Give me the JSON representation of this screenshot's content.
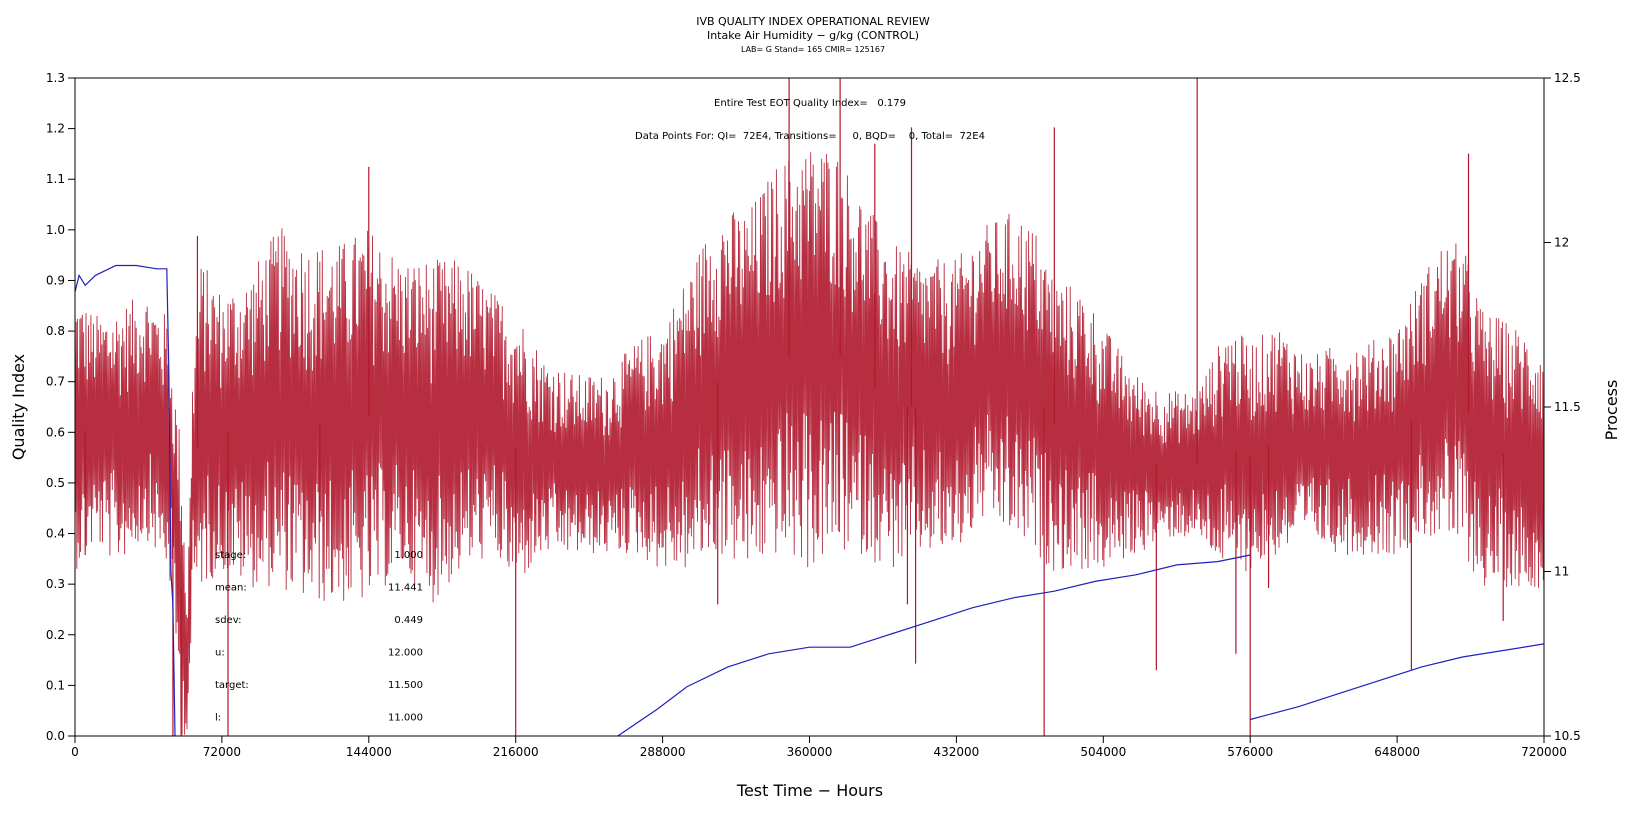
{
  "chart_data": {
    "type": "line",
    "title": "IVB QUALITY INDEX OPERATIONAL REVIEW",
    "subtitle": "Intake Air Humidity − g/kg (CONTROL)",
    "subtitle2": "LAB= G Stand= 165 CMIR= 125167",
    "xlabel": "Test Time − Hours",
    "ylabel_left": "Quality Index",
    "ylabel_right": "Process",
    "xlim": [
      0,
      720000
    ],
    "ylim_left": [
      0,
      1.3
    ],
    "ylim_right": [
      10.5,
      12.5
    ],
    "x_ticks": [
      "0",
      "72000",
      "144000",
      "216000",
      "288000",
      "360000",
      "432000",
      "504000",
      "576000",
      "648000",
      "720000"
    ],
    "y_left_ticks": [
      "0.0",
      "0.1",
      "0.2",
      "0.3",
      "0.4",
      "0.5",
      "0.6",
      "0.7",
      "0.8",
      "0.9",
      "1.0",
      "1.1",
      "1.2",
      "1.3"
    ],
    "y_right_ticks": [
      "10.5",
      "11",
      "11.5",
      "12",
      "12.5"
    ],
    "annotations": {
      "eot": "Entire Test EOT Quality Index=   0.179",
      "points": "Data Points For: QI=  72E4, Transitions=     0, BQD=    0, Total=  72E4"
    },
    "stats": [
      {
        "label": "stage:",
        "value": "1.000"
      },
      {
        "label": "mean:",
        "value": "11.441"
      },
      {
        "label": "sdev:",
        "value": "0.449"
      },
      {
        "label": "u:",
        "value": "12.000"
      },
      {
        "label": "target:",
        "value": "11.500"
      },
      {
        "label": "l:",
        "value": "11.000"
      }
    ],
    "series": [
      {
        "axis": "right",
        "color": "#b0172c",
        "band": [
          [
            0,
            11.0,
            11.85
          ],
          [
            10000,
            11.08,
            11.78
          ],
          [
            20000,
            11.02,
            11.8
          ],
          [
            35000,
            11.1,
            11.85
          ],
          [
            45000,
            11.0,
            11.78
          ],
          [
            48000,
            10.9,
            11.6
          ],
          [
            52000,
            10.5,
            11.4
          ],
          [
            55000,
            10.5,
            10.9
          ],
          [
            58000,
            10.9,
            11.7
          ],
          [
            62000,
            10.95,
            11.95
          ],
          [
            72000,
            11.0,
            11.85
          ],
          [
            85000,
            10.95,
            11.9
          ],
          [
            100000,
            10.95,
            12.05
          ],
          [
            115000,
            10.9,
            12.0
          ],
          [
            130000,
            10.9,
            12.0
          ],
          [
            144000,
            10.9,
            12.05
          ],
          [
            160000,
            11.0,
            11.95
          ],
          [
            175000,
            10.9,
            11.95
          ],
          [
            190000,
            11.0,
            11.95
          ],
          [
            205000,
            11.05,
            11.85
          ],
          [
            216000,
            10.95,
            11.8
          ],
          [
            230000,
            11.05,
            11.65
          ],
          [
            245000,
            11.05,
            11.6
          ],
          [
            260000,
            11.05,
            11.6
          ],
          [
            275000,
            11.05,
            11.7
          ],
          [
            288000,
            11.0,
            11.75
          ],
          [
            300000,
            11.0,
            11.9
          ],
          [
            315000,
            11.05,
            12.1
          ],
          [
            330000,
            11.0,
            12.1
          ],
          [
            345000,
            11.05,
            12.25
          ],
          [
            360000,
            11.0,
            12.3
          ],
          [
            372000,
            11.05,
            12.3
          ],
          [
            385000,
            11.05,
            12.15
          ],
          [
            400000,
            11.0,
            12.0
          ],
          [
            415000,
            11.05,
            11.95
          ],
          [
            432000,
            11.05,
            11.95
          ],
          [
            445000,
            11.15,
            12.05
          ],
          [
            460000,
            11.1,
            12.1
          ],
          [
            470000,
            11.05,
            12.05
          ],
          [
            480000,
            11.0,
            11.9
          ],
          [
            495000,
            11.0,
            11.85
          ],
          [
            504000,
            11.0,
            11.75
          ],
          [
            520000,
            11.05,
            11.6
          ],
          [
            535000,
            11.1,
            11.55
          ],
          [
            550000,
            11.1,
            11.55
          ],
          [
            565000,
            11.0,
            11.75
          ],
          [
            576000,
            11.0,
            11.7
          ],
          [
            590000,
            11.05,
            11.75
          ],
          [
            605000,
            11.1,
            11.65
          ],
          [
            620000,
            11.05,
            11.7
          ],
          [
            635000,
            11.05,
            11.7
          ],
          [
            648000,
            11.05,
            11.75
          ],
          [
            660000,
            11.1,
            11.9
          ],
          [
            670000,
            11.1,
            12.0
          ],
          [
            680000,
            11.05,
            12.0
          ],
          [
            690000,
            10.95,
            11.8
          ],
          [
            705000,
            10.95,
            11.75
          ],
          [
            720000,
            10.95,
            11.7
          ]
        ],
        "spikes": [
          [
            5000,
            11.05
          ],
          [
            48000,
            10.5
          ],
          [
            52000,
            10.5
          ],
          [
            60000,
            12.02
          ],
          [
            75000,
            10.5
          ],
          [
            120000,
            11.15
          ],
          [
            144000,
            12.23
          ],
          [
            216000,
            10.5
          ],
          [
            315000,
            10.9
          ],
          [
            350000,
            12.5
          ],
          [
            375000,
            12.5
          ],
          [
            392000,
            12.3
          ],
          [
            408000,
            10.9
          ],
          [
            410000,
            12.35
          ],
          [
            412000,
            10.72
          ],
          [
            475000,
            10.5
          ],
          [
            480000,
            12.35
          ],
          [
            530000,
            10.7
          ],
          [
            550000,
            12.5
          ],
          [
            569000,
            10.75
          ],
          [
            576000,
            10.5
          ],
          [
            585000,
            10.95
          ],
          [
            655000,
            10.7
          ],
          [
            683000,
            12.27
          ],
          [
            700000,
            10.85
          ]
        ]
      },
      {
        "axis": "right",
        "color": "#2020c0",
        "points": [
          [
            0,
            11.85
          ],
          [
            2000,
            11.9
          ],
          [
            5000,
            11.87
          ],
          [
            10000,
            11.9
          ],
          [
            20000,
            11.93
          ],
          [
            30000,
            11.93
          ],
          [
            40000,
            11.92
          ],
          [
            45000,
            11.92
          ],
          [
            46000,
            11.6
          ],
          [
            47000,
            11.0
          ],
          [
            48000,
            10.9
          ],
          [
            49000,
            10.5
          ]
        ]
      },
      {
        "axis": "right",
        "color": "#2020c0",
        "points": [
          [
            266000,
            10.5
          ],
          [
            285000,
            10.58
          ],
          [
            300000,
            10.65
          ],
          [
            320000,
            10.71
          ],
          [
            340000,
            10.75
          ],
          [
            360000,
            10.77
          ],
          [
            380000,
            10.77
          ],
          [
            400000,
            10.81
          ],
          [
            420000,
            10.85
          ],
          [
            440000,
            10.89
          ],
          [
            460000,
            10.92
          ],
          [
            480000,
            10.94
          ],
          [
            500000,
            10.97
          ],
          [
            520000,
            10.99
          ],
          [
            540000,
            11.02
          ],
          [
            560000,
            11.03
          ],
          [
            576000,
            11.05
          ]
        ]
      },
      {
        "axis": "right",
        "color": "#2020c0",
        "points": [
          [
            576000,
            10.55
          ],
          [
            600000,
            10.59
          ],
          [
            620000,
            10.63
          ],
          [
            640000,
            10.67
          ],
          [
            660000,
            10.71
          ],
          [
            680000,
            10.74
          ],
          [
            700000,
            10.76
          ],
          [
            720000,
            10.78
          ]
        ]
      }
    ]
  }
}
